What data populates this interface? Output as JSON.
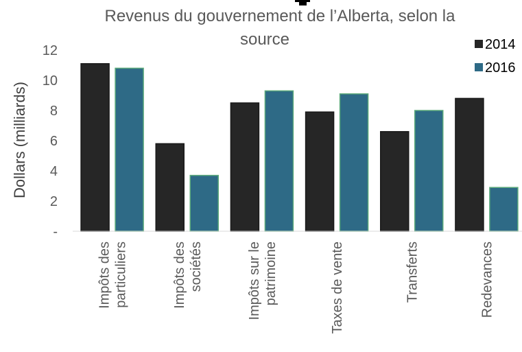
{
  "chart_data": {
    "type": "bar",
    "title_line1": "Revenus du gouvernement de l’Alberta, selon la",
    "title_line2": "source",
    "ylabel": "Dollars (milliards)",
    "xlabel": "",
    "ylim": [
      0,
      12
    ],
    "yticks": [
      0,
      2,
      4,
      6,
      8,
      10,
      12
    ],
    "ytick_labels": [
      "-",
      "2",
      "4",
      "6",
      "8",
      "10",
      "12"
    ],
    "grid": false,
    "legend_position": "top-right",
    "categories": [
      [
        "Impôts des",
        "particuliers"
      ],
      [
        "Impôts des",
        "sociétés"
      ],
      [
        "Impôts sur le",
        "patrimoine"
      ],
      [
        "Taxes de vente"
      ],
      [
        "Transferts"
      ],
      [
        "Redevances"
      ]
    ],
    "series": [
      {
        "name": "2014",
        "color": "#262626",
        "values": [
          11.1,
          5.8,
          8.5,
          7.9,
          6.6,
          8.8
        ]
      },
      {
        "name": "2016",
        "color": "#2E6A86",
        "values": [
          10.8,
          3.7,
          9.3,
          9.1,
          8.0,
          2.9
        ]
      }
    ]
  }
}
